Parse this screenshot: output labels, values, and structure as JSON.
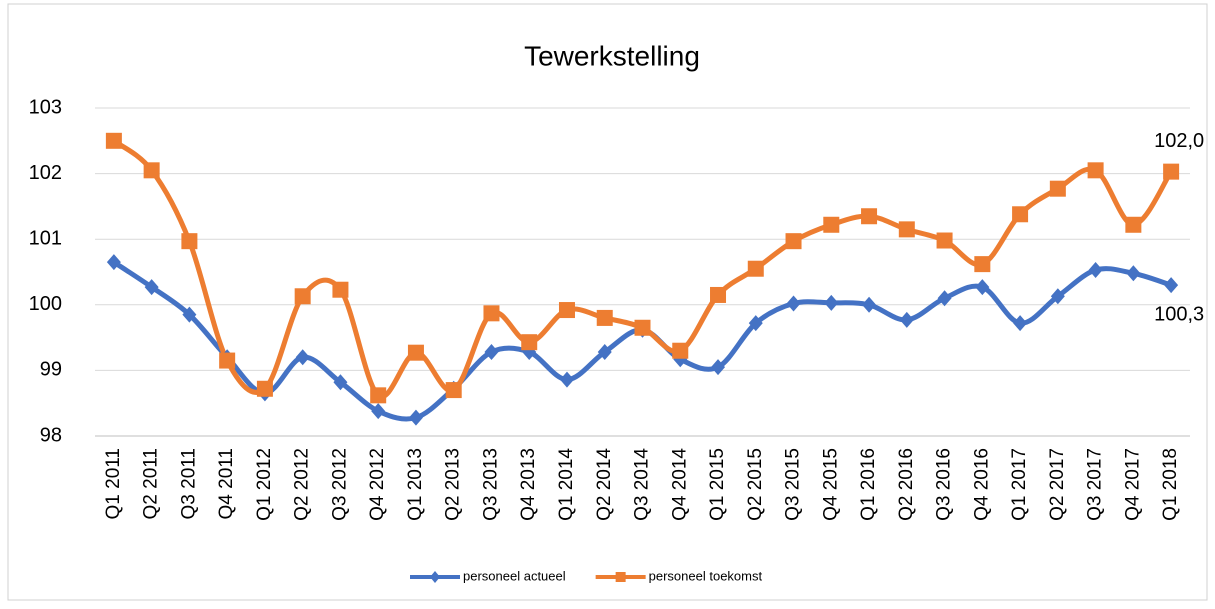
{
  "chart_data": {
    "type": "line",
    "title": "Tewerkstelling",
    "categories": [
      "Q1 2011",
      "Q2 2011",
      "Q3 2011",
      "Q4 2011",
      "Q1 2012",
      "Q2 2012",
      "Q3 2012",
      "Q4 2012",
      "Q1 2013",
      "Q2 2013",
      "Q3 2013",
      "Q4 2013",
      "Q1 2014",
      "Q2 2014",
      "Q3 2014",
      "Q4 2014",
      "Q1 2015",
      "Q2 2015",
      "Q3 2015",
      "Q4 2015",
      "Q1 2016",
      "Q2 2016",
      "Q3 2016",
      "Q4 2016",
      "Q1 2017",
      "Q2 2017",
      "Q3 2017",
      "Q4 2017",
      "Q1 2018"
    ],
    "series": [
      {
        "name": "personeel actueel",
        "color": "#4472c4",
        "marker": "diamond",
        "values": [
          100.65,
          100.27,
          99.85,
          99.2,
          98.65,
          99.2,
          98.82,
          98.38,
          98.28,
          98.72,
          99.28,
          99.28,
          98.86,
          99.28,
          99.62,
          99.17,
          99.05,
          99.72,
          100.02,
          100.03,
          100.0,
          99.77,
          100.1,
          100.27,
          99.72,
          100.13,
          100.53,
          100.48,
          100.3
        ],
        "value_labels": [
          null,
          null,
          null,
          null,
          null,
          null,
          null,
          null,
          null,
          null,
          null,
          null,
          null,
          null,
          null,
          null,
          null,
          null,
          null,
          null,
          null,
          null,
          null,
          null,
          null,
          null,
          null,
          null,
          "100,3"
        ]
      },
      {
        "name": "personeel toekomst",
        "color": "#ed7d31",
        "marker": "square",
        "values": [
          102.5,
          102.05,
          100.97,
          99.15,
          98.72,
          100.13,
          100.23,
          98.62,
          99.27,
          98.7,
          99.87,
          99.43,
          99.92,
          99.8,
          99.65,
          99.3,
          100.15,
          100.55,
          100.97,
          101.22,
          101.35,
          101.15,
          100.98,
          100.62,
          101.38,
          101.77,
          102.05,
          101.22,
          102.03
        ],
        "value_labels": [
          null,
          null,
          null,
          null,
          null,
          null,
          null,
          null,
          null,
          null,
          null,
          null,
          null,
          null,
          null,
          null,
          null,
          null,
          null,
          null,
          null,
          null,
          null,
          null,
          null,
          null,
          null,
          null,
          "102,0"
        ]
      }
    ],
    "ylim": [
      98,
      103
    ],
    "yticks": [
      98,
      99,
      100,
      101,
      102,
      103
    ],
    "grid": true,
    "smooth": true,
    "legend": "bottom"
  }
}
